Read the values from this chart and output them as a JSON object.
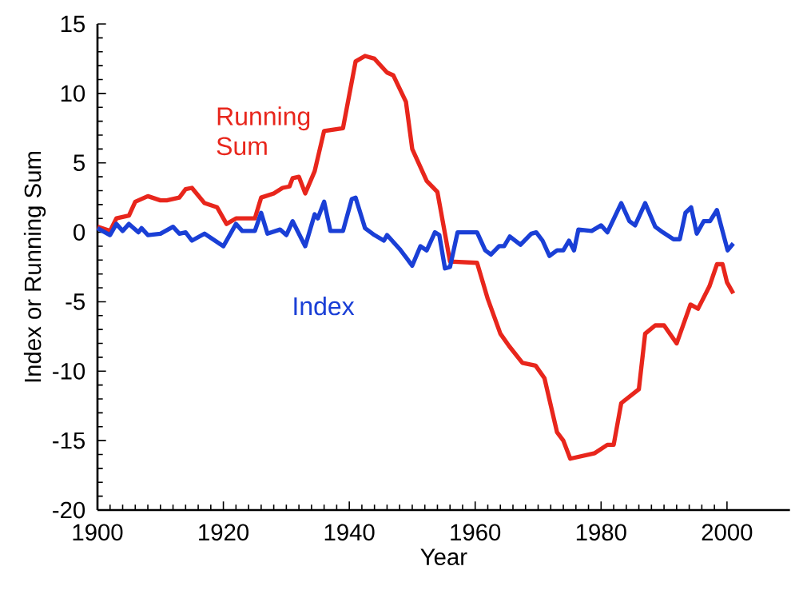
{
  "chart_data": {
    "type": "line",
    "xlabel": "Year",
    "ylabel": "Index or Running Sum",
    "xlim": [
      1900,
      2010
    ],
    "ylim": [
      -20,
      15
    ],
    "xticks": [
      1900,
      1920,
      1940,
      1960,
      1980,
      2000
    ],
    "yticks": [
      -20,
      -15,
      -10,
      -5,
      0,
      5,
      10,
      15
    ],
    "grid": false,
    "legend": false,
    "marker": "none",
    "line_style": "solid",
    "series": [
      {
        "name": "Running Sum",
        "color": "#e8261c",
        "x": [
          1900,
          1902,
          1903,
          1905,
          1906,
          1908,
          1910,
          1911,
          1913,
          1914,
          1915,
          1917,
          1919,
          1920.5,
          1922,
          1925,
          1926,
          1928,
          1929.4,
          1930.5,
          1931,
          1932,
          1933,
          1934.5,
          1936,
          1939,
          1941,
          1942.5,
          1944,
          1946,
          1947,
          1949,
          1950,
          1952.3,
          1954,
          1956,
          1960.3,
          1962,
          1964,
          1965.4,
          1967.5,
          1969.6,
          1971,
          1973,
          1974,
          1975.1,
          1979,
          1981,
          1982,
          1983.2,
          1986,
          1987,
          1988.6,
          1990,
          1992,
          1994.2,
          1995.4,
          1997.2,
          1998.4,
          1999.3,
          2000,
          2001
        ],
        "values": [
          0.4,
          0.1,
          1.0,
          1.2,
          2.2,
          2.6,
          2.3,
          2.3,
          2.5,
          3.1,
          3.2,
          2.1,
          1.8,
          0.6,
          1.0,
          1.0,
          2.5,
          2.8,
          3.2,
          3.3,
          3.9,
          4.0,
          2.8,
          4.4,
          7.3,
          7.5,
          12.3,
          12.7,
          12.5,
          11.5,
          11.3,
          9.4,
          6.0,
          3.7,
          2.9,
          -2.1,
          -2.2,
          -4.8,
          -7.3,
          -8.2,
          -9.4,
          -9.6,
          -10.5,
          -14.4,
          -15.0,
          -16.3,
          -15.9,
          -15.3,
          -15.3,
          -12.3,
          -11.3,
          -7.3,
          -6.7,
          -6.7,
          -8.0,
          -5.2,
          -5.5,
          -3.9,
          -2.3,
          -2.3,
          -3.6,
          -4.4
        ]
      },
      {
        "name": "Index",
        "color": "#1a3fd6",
        "x": [
          1900,
          1902,
          1903,
          1904,
          1905,
          1906.5,
          1907,
          1908,
          1910,
          1912,
          1913,
          1914,
          1915,
          1917,
          1920,
          1922,
          1923,
          1925,
          1926,
          1927,
          1929,
          1930,
          1931,
          1933,
          1934.5,
          1935,
          1936,
          1937,
          1939,
          1940.4,
          1941,
          1942.5,
          1944,
          1945.5,
          1946,
          1948,
          1950,
          1951.3,
          1952.3,
          1953.6,
          1954.3,
          1955.2,
          1956,
          1957.2,
          1960.3,
          1961.6,
          1962.5,
          1963.8,
          1964.6,
          1965.5,
          1967.2,
          1968.9,
          1969.7,
          1970.7,
          1971.8,
          1973,
          1974,
          1974.9,
          1975.7,
          1976.4,
          1978.5,
          1980,
          1981,
          1983.2,
          1984.5,
          1985.4,
          1987,
          1988.6,
          1989.8,
          1991.5,
          1992.5,
          1993.4,
          1994.3,
          1995.2,
          1996.3,
          1997.3,
          1998.4,
          2000.1,
          2001
        ],
        "values": [
          0.3,
          -0.2,
          0.6,
          0.1,
          0.6,
          0.0,
          0.3,
          -0.2,
          -0.1,
          0.4,
          -0.1,
          0.0,
          -0.6,
          -0.1,
          -1.0,
          0.6,
          0.1,
          0.1,
          1.4,
          -0.1,
          0.2,
          -0.2,
          0.8,
          -1.0,
          1.3,
          1.0,
          2.2,
          0.1,
          0.1,
          2.4,
          2.5,
          0.3,
          -0.2,
          -0.6,
          -0.2,
          -1.2,
          -2.4,
          -1.0,
          -1.3,
          0.0,
          -0.2,
          -2.6,
          -2.5,
          0.0,
          0.0,
          -1.3,
          -1.6,
          -1.0,
          -1.0,
          -0.3,
          -0.9,
          -0.1,
          0.0,
          -0.6,
          -1.7,
          -1.3,
          -1.3,
          -0.6,
          -1.3,
          0.2,
          0.1,
          0.5,
          0.0,
          2.1,
          0.8,
          0.5,
          2.1,
          0.4,
          0.0,
          -0.5,
          -0.5,
          1.4,
          1.8,
          -0.1,
          0.8,
          0.8,
          1.6,
          -1.3,
          -0.8
        ]
      }
    ]
  }
}
